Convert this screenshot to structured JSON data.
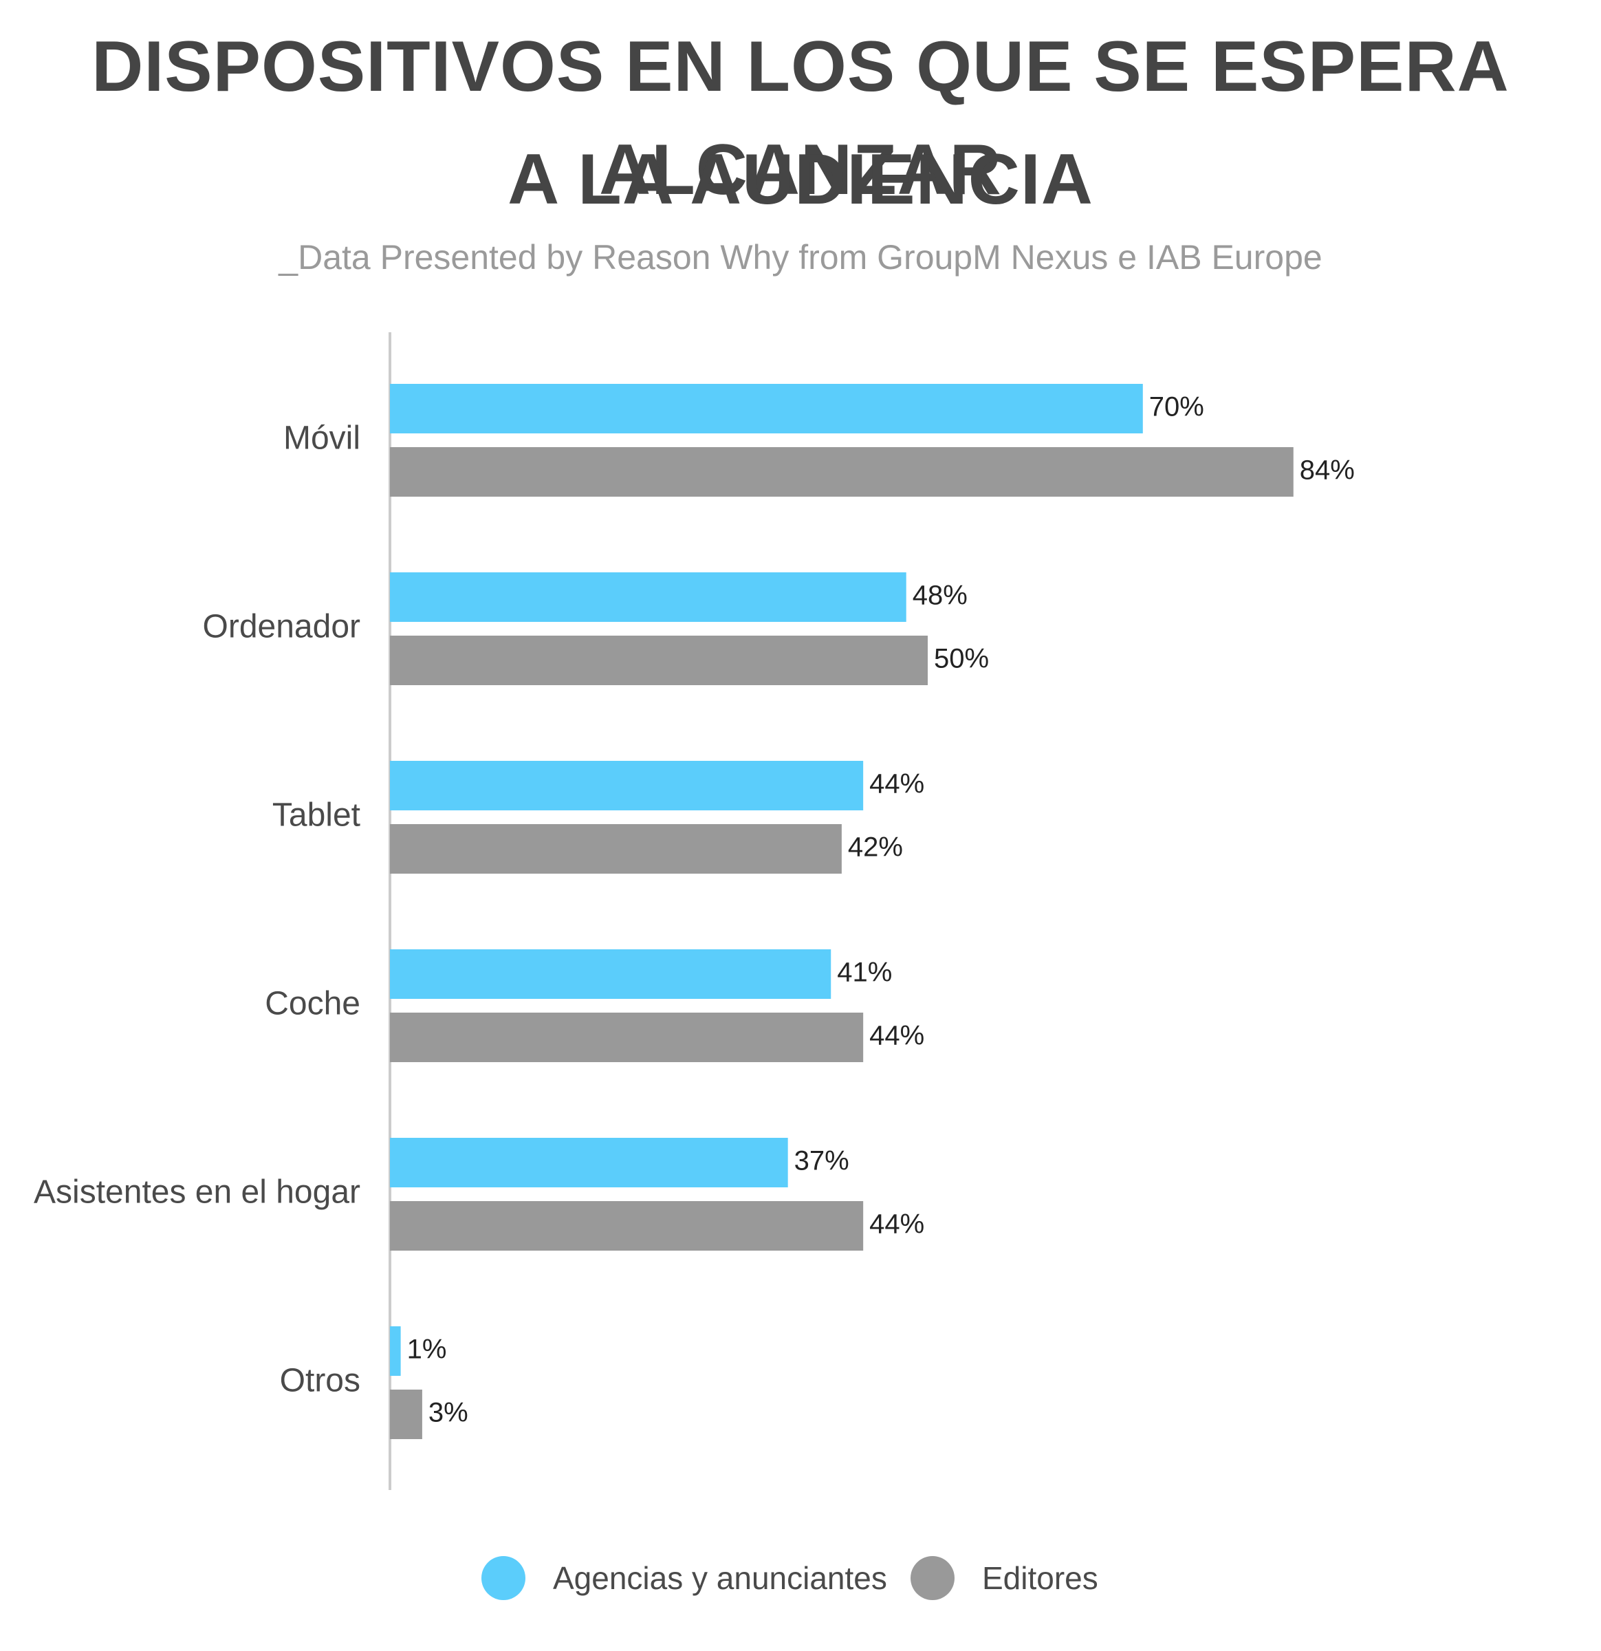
{
  "title": {
    "line1": "DISPOSITIVOS EN LOS QUE SE ESPERA ALCANZAR",
    "line2": "A LA AUDIENCIA"
  },
  "subtitle": "_Data Presented by Reason Why from GroupM Nexus e IAB Europe",
  "colors": {
    "agencias": "#5bcdfb",
    "editores": "#999999",
    "axis": "#cccccc",
    "category_text": "#4a4a4a",
    "value_text": "#222222"
  },
  "chart_data": {
    "type": "bar",
    "orientation": "horizontal",
    "categories": [
      "Móvil",
      "Ordenador",
      "Tablet",
      "Coche",
      "Asistentes en el hogar",
      "Otros"
    ],
    "series": [
      {
        "name": "Agencias y anunciantes",
        "values": [
          70,
          48,
          44,
          41,
          37,
          1
        ],
        "labels": [
          "70%",
          "48%",
          "44%",
          "41%",
          "37%",
          "1%"
        ]
      },
      {
        "name": "Editores",
        "values": [
          84,
          50,
          42,
          44,
          44,
          3
        ],
        "labels": [
          "84%",
          "50%",
          "42%",
          "44%",
          "44%",
          "3%"
        ]
      }
    ],
    "unit": "%",
    "xlim": [
      0,
      100
    ],
    "grid": false,
    "legend_position": "bottom"
  },
  "legend": {
    "agencias_label": "Agencias y anunciantes",
    "editores_label": "Editores"
  }
}
